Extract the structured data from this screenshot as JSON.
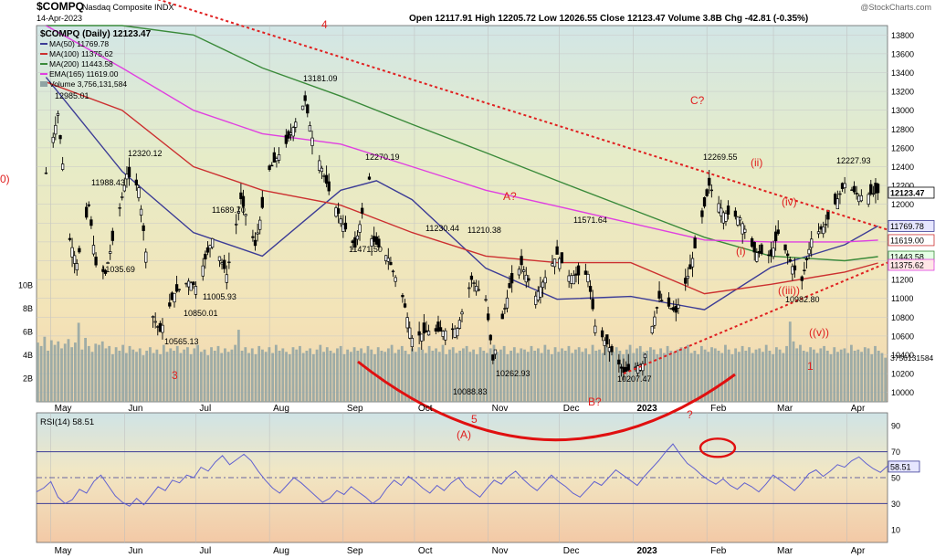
{
  "header": {
    "symbol": "$COMPQ",
    "name": "Nasdaq Composite INDX",
    "date": "14-Apr-2023",
    "ohlc": "Open 12117.91  High 12205.72  Low 12026.55  Close 12123.47  Volume 3.8B  Chg -42.81 (-0.35%)",
    "watermark": "@StockCharts.com"
  },
  "legend": {
    "main": "$COMPQ (Daily) 12123.47",
    "ma50": "MA(50) 11769.78",
    "ma100": "MA(100) 11375.62",
    "ma200": "MA(200) 11443.58",
    "ema165": "EMA(165) 11619.00",
    "volume": "Volume 3,756,131,584"
  },
  "colors": {
    "ma50": "#3c3c96",
    "ma100": "#cc3030",
    "ma200": "#3a8a3a",
    "ema165": "#e040e0",
    "annotation": "#e02020",
    "volume": "#8fa3a3",
    "price": "#000000",
    "rsi": "#6060d0"
  },
  "chart_data": [
    {
      "type": "line",
      "title": "$COMPQ Nasdaq Composite INDX",
      "x": [
        "May",
        "Jun",
        "Jul",
        "Aug",
        "Sep",
        "Oct",
        "Nov",
        "Dec",
        "2023",
        "Feb",
        "Mar",
        "Apr"
      ],
      "y_ticks": [
        "13800",
        "13600",
        "13400",
        "13200",
        "13000",
        "12800",
        "12600",
        "12400",
        "12200",
        "12000",
        "11800",
        "11600",
        "11400",
        "11200",
        "11000",
        "10800",
        "10600",
        "10400",
        "10200",
        "10000"
      ],
      "ylim": [
        9900,
        13900
      ],
      "series": [
        {
          "name": "$COMPQ",
          "points": [
            [
              "2022-04-29",
              12334
            ],
            [
              "2022-05-04",
              12965
            ],
            [
              "2022-05-09",
              11624
            ],
            [
              "2022-05-12",
              11370
            ],
            [
              "2022-05-17",
              11985
            ],
            [
              "2022-05-20",
              11355
            ],
            [
              "2022-05-24",
              11264
            ],
            [
              "2022-05-31",
              12081
            ],
            [
              "2022-06-02",
              12320
            ],
            [
              "2022-06-07",
              12175
            ],
            [
              "2022-06-13",
              10809
            ],
            [
              "2022-06-16",
              10646
            ],
            [
              "2022-06-22",
              11053
            ],
            [
              "2022-06-28",
              11182
            ],
            [
              "2022-07-01",
              11128
            ],
            [
              "2022-07-08",
              11635
            ],
            [
              "2022-07-14",
              11252
            ],
            [
              "2022-07-20",
              12059
            ],
            [
              "2022-07-26",
              11562
            ],
            [
              "2022-08-01",
              12369
            ],
            [
              "2022-08-08",
              12645
            ],
            [
              "2022-08-16",
              13102
            ],
            [
              "2022-08-19",
              12705
            ],
            [
              "2022-08-26",
              12142
            ],
            [
              "2022-09-01",
              11785
            ],
            [
              "2022-09-06",
              11544
            ],
            [
              "2022-09-12",
              12266
            ],
            [
              "2022-09-13",
              11634
            ],
            [
              "2022-09-20",
              11426
            ],
            [
              "2022-09-26",
              11017
            ],
            [
              "2022-09-30",
              10576
            ],
            [
              "2022-10-07",
              10652
            ],
            [
              "2022-10-13",
              10650
            ],
            [
              "2022-10-19",
              10680
            ],
            [
              "2022-10-25",
              11200
            ],
            [
              "2022-10-31",
              10988
            ],
            [
              "2022-11-03",
              10343
            ],
            [
              "2022-11-10",
              11114
            ],
            [
              "2022-11-15",
              11358
            ],
            [
              "2022-11-21",
              11024
            ],
            [
              "2022-11-30",
              11468
            ],
            [
              "2022-12-05",
              11240
            ],
            [
              "2022-12-13",
              11256
            ],
            [
              "2022-12-16",
              10705
            ],
            [
              "2022-12-22",
              10476
            ],
            [
              "2022-12-28",
              10213
            ],
            [
              "2023-01-05",
              10305
            ],
            [
              "2023-01-12",
              11001
            ],
            [
              "2023-01-19",
              10852
            ],
            [
              "2023-01-25",
              11313
            ],
            [
              "2023-02-02",
              12201
            ],
            [
              "2023-02-08",
              11910
            ],
            [
              "2023-02-15",
              11855
            ],
            [
              "2023-02-21",
              11492
            ],
            [
              "2023-02-28",
              11456
            ],
            [
              "2023-03-03",
              11689
            ],
            [
              "2023-03-09",
              11338
            ],
            [
              "2023-03-13",
              11188
            ],
            [
              "2023-03-17",
              11630
            ],
            [
              "2023-03-23",
              11787
            ],
            [
              "2023-03-31",
              12221
            ],
            [
              "2023-04-06",
              12087
            ],
            [
              "2023-04-14",
              12123
            ]
          ]
        },
        {
          "name": "MA(50)",
          "points": [
            [
              "2022-04-29",
              13350
            ],
            [
              "2022-05-31",
              12350
            ],
            [
              "2022-06-30",
              11700
            ],
            [
              "2022-07-29",
              11450
            ],
            [
              "2022-08-31",
              12150
            ],
            [
              "2022-09-15",
              12250
            ],
            [
              "2022-09-30",
              12050
            ],
            [
              "2022-10-31",
              11320
            ],
            [
              "2022-11-30",
              10990
            ],
            [
              "2022-12-31",
              11020
            ],
            [
              "2023-01-31",
              10880
            ],
            [
              "2023-02-28",
              11330
            ],
            [
              "2023-03-31",
              11570
            ],
            [
              "2023-04-14",
              11770
            ]
          ]
        },
        {
          "name": "MA(100)",
          "points": [
            [
              "2022-04-29",
              13300
            ],
            [
              "2022-05-31",
              13000
            ],
            [
              "2022-06-30",
              12400
            ],
            [
              "2022-07-29",
              12150
            ],
            [
              "2022-08-31",
              11990
            ],
            [
              "2022-09-30",
              11700
            ],
            [
              "2022-10-31",
              11450
            ],
            [
              "2022-11-30",
              11380
            ],
            [
              "2022-12-31",
              11380
            ],
            [
              "2023-01-31",
              11050
            ],
            [
              "2023-02-28",
              11150
            ],
            [
              "2023-03-31",
              11280
            ],
            [
              "2023-04-14",
              11376
            ]
          ]
        },
        {
          "name": "MA(200)",
          "points": [
            [
              "2022-04-29",
              14100
            ],
            [
              "2022-05-31",
              13900
            ],
            [
              "2022-06-30",
              13800
            ],
            [
              "2022-07-29",
              13450
            ],
            [
              "2022-08-31",
              13150
            ],
            [
              "2022-09-30",
              12850
            ],
            [
              "2022-10-31",
              12550
            ],
            [
              "2022-11-30",
              12250
            ],
            [
              "2022-12-31",
              11950
            ],
            [
              "2023-01-31",
              11650
            ],
            [
              "2023-02-28",
              11450
            ],
            [
              "2023-03-31",
              11400
            ],
            [
              "2023-04-14",
              11444
            ]
          ]
        },
        {
          "name": "EMA(165)",
          "points": [
            [
              "2022-04-29",
              13900
            ],
            [
              "2022-05-31",
              13450
            ],
            [
              "2022-06-30",
              13000
            ],
            [
              "2022-07-29",
              12750
            ],
            [
              "2022-08-31",
              12640
            ],
            [
              "2022-09-30",
              12400
            ],
            [
              "2022-10-31",
              12150
            ],
            [
              "2022-11-30",
              11980
            ],
            [
              "2022-12-31",
              11800
            ],
            [
              "2023-01-31",
              11620
            ],
            [
              "2023-02-28",
              11600
            ],
            [
              "2023-03-31",
              11600
            ],
            [
              "2023-04-14",
              11619
            ]
          ]
        }
      ]
    },
    {
      "type": "bar",
      "title": "Volume",
      "y_ticks": [
        "10B",
        "8B",
        "6B",
        "4B",
        "2B"
      ],
      "ylim": [
        0,
        11
      ],
      "values_unit": "B",
      "values": [
        5.1,
        4.8,
        5.6,
        4.4,
        5.3,
        4.9,
        5.2,
        4.6,
        5.0,
        5.4,
        4.7,
        5.1,
        6.8,
        4.5,
        5.5,
        4.8,
        4.3,
        5.0,
        4.9,
        5.2,
        4.6,
        4.8,
        4.1,
        4.7,
        4.4,
        4.9,
        4.2,
        4.8,
        4.5,
        4.3,
        4.6,
        4.0,
        4.4,
        4.7,
        4.2,
        4.5,
        4.1,
        4.9,
        4.3,
        4.6,
        4.4,
        4.8,
        4.2,
        4.5,
        4.7,
        4.1,
        4.6,
        4.9,
        4.3,
        4.5,
        4.0,
        4.7,
        4.4,
        4.8,
        4.2,
        4.6,
        4.3,
        4.5,
        4.9,
        6.2,
        4.4,
        4.7,
        4.2,
        4.6,
        4.1,
        4.8,
        4.5,
        4.3,
        4.7,
        4.2,
        4.9,
        4.4,
        4.6,
        4.3,
        4.1,
        4.7,
        4.5,
        4.8,
        4.2,
        4.4,
        4.6,
        4.1,
        4.5,
        4.9,
        4.3,
        4.7,
        4.4,
        4.2,
        4.6,
        4.8,
        4.1,
        4.5,
        4.3,
        4.7,
        4.4,
        4.6,
        4.2,
        4.8,
        4.5,
        4.1,
        4.7,
        4.4,
        4.3,
        4.6,
        4.9,
        4.2,
        4.5,
        4.8,
        4.4,
        4.1,
        4.6,
        4.3,
        4.7,
        4.5,
        4.2,
        4.8,
        4.4,
        4.6,
        4.3,
        4.9,
        4.1,
        4.5,
        4.7,
        4.2,
        4.4,
        4.6,
        4.8,
        4.3,
        4.5,
        4.1,
        4.7,
        4.4,
        4.2,
        4.6,
        4.9,
        4.3,
        4.5,
        4.8,
        4.1,
        4.4,
        4.7,
        4.2,
        4.6,
        4.5,
        4.3,
        4.8,
        4.4,
        4.6,
        4.2,
        4.9,
        4.5,
        4.1,
        4.7,
        4.3,
        4.6,
        4.4,
        4.8,
        4.2,
        4.5,
        4.7,
        4.3,
        4.6,
        4.1,
        4.9,
        4.4,
        4.5,
        4.2,
        4.8,
        4.6,
        4.3,
        4.7,
        4.4,
        4.1,
        4.5,
        4.9,
        4.2,
        4.6,
        4.8,
        4.3,
        4.4,
        4.7,
        4.5,
        4.1,
        4.6,
        4.2,
        4.8,
        4.4,
        4.3,
        4.5,
        4.7,
        4.6,
        4.9,
        4.2,
        4.4,
        4.1,
        4.8,
        4.5,
        4.3,
        4.7,
        4.6,
        4.4,
        4.2,
        4.9,
        4.5,
        4.1,
        4.6,
        4.3,
        4.8,
        4.4,
        4.7,
        4.2,
        4.5,
        4.6,
        4.3,
        4.9,
        4.4,
        4.1,
        4.7,
        4.5,
        4.2,
        4.8,
        6.9,
        5.2,
        4.6,
        4.9,
        4.4,
        4.3,
        4.7,
        4.5,
        4.2,
        4.6,
        4.8,
        4.4,
        4.1,
        4.7,
        4.3,
        4.5,
        4.6,
        4.2,
        4.9,
        4.4,
        4.5,
        4.3,
        4.7,
        4.6,
        4.1,
        4.8,
        4.4,
        4.2,
        3.8
      ]
    },
    {
      "type": "line",
      "title": "RSI(14) 58.51",
      "y_ticks": [
        "90",
        "70",
        "50",
        "30",
        "10"
      ],
      "ylim": [
        0,
        100
      ],
      "values": [
        39,
        42,
        47,
        35,
        30,
        33,
        41,
        38,
        47,
        52,
        44,
        36,
        31,
        28,
        34,
        29,
        36,
        43,
        40,
        48,
        46,
        52,
        50,
        58,
        55,
        62,
        67,
        60,
        64,
        68,
        63,
        55,
        48,
        42,
        38,
        44,
        50,
        46,
        41,
        36,
        31,
        34,
        40,
        37,
        43,
        39,
        35,
        30,
        34,
        42,
        48,
        44,
        51,
        47,
        42,
        38,
        44,
        40,
        46,
        50,
        43,
        39,
        35,
        42,
        48,
        45,
        51,
        55,
        49,
        44,
        40,
        46,
        52,
        47,
        43,
        38,
        35,
        41,
        47,
        44,
        50,
        56,
        52,
        48,
        44,
        51,
        57,
        63,
        70,
        76,
        68,
        61,
        57,
        52,
        48,
        45,
        49,
        44,
        41,
        46,
        43,
        39,
        45,
        52,
        48,
        44,
        40,
        46,
        53,
        56,
        51,
        55,
        60,
        58,
        63,
        66,
        61,
        57,
        54,
        59
      ]
    }
  ],
  "annotations": {
    "price_labels": [
      "12985.01",
      "12320.12",
      "11988.43",
      "11035.69",
      "10565.13",
      "10850.01",
      "11689.70",
      "11005.93",
      "13181.09",
      "12270.19",
      "11471.50",
      "11230.44",
      "11210.38",
      "10088.83",
      "10262.93",
      "11571.64",
      "10207.47",
      "12269.55",
      "12227.93",
      "10982.80"
    ],
    "wave_labels": [
      "4",
      "3",
      "5",
      "(A)",
      "A?",
      "B?",
      "C?",
      "?",
      "(i)",
      "(ii)",
      "(iii)",
      "(iv)",
      "(v)",
      "((iii))",
      "((v))",
      "1",
      "0)"
    ],
    "rsi_label": "RSI(14) 58.51",
    "rsi_value": "58.51",
    "right_labels": [
      "12123.47",
      "11769.78",
      "11619.00",
      "11443.58",
      "11375.62"
    ],
    "volume_value": "3756131584",
    "x_ticks": [
      "May",
      "Jun",
      "Jul",
      "Aug",
      "Sep",
      "Oct",
      "Nov",
      "Dec",
      "2023",
      "Feb",
      "Mar",
      "Apr"
    ]
  }
}
